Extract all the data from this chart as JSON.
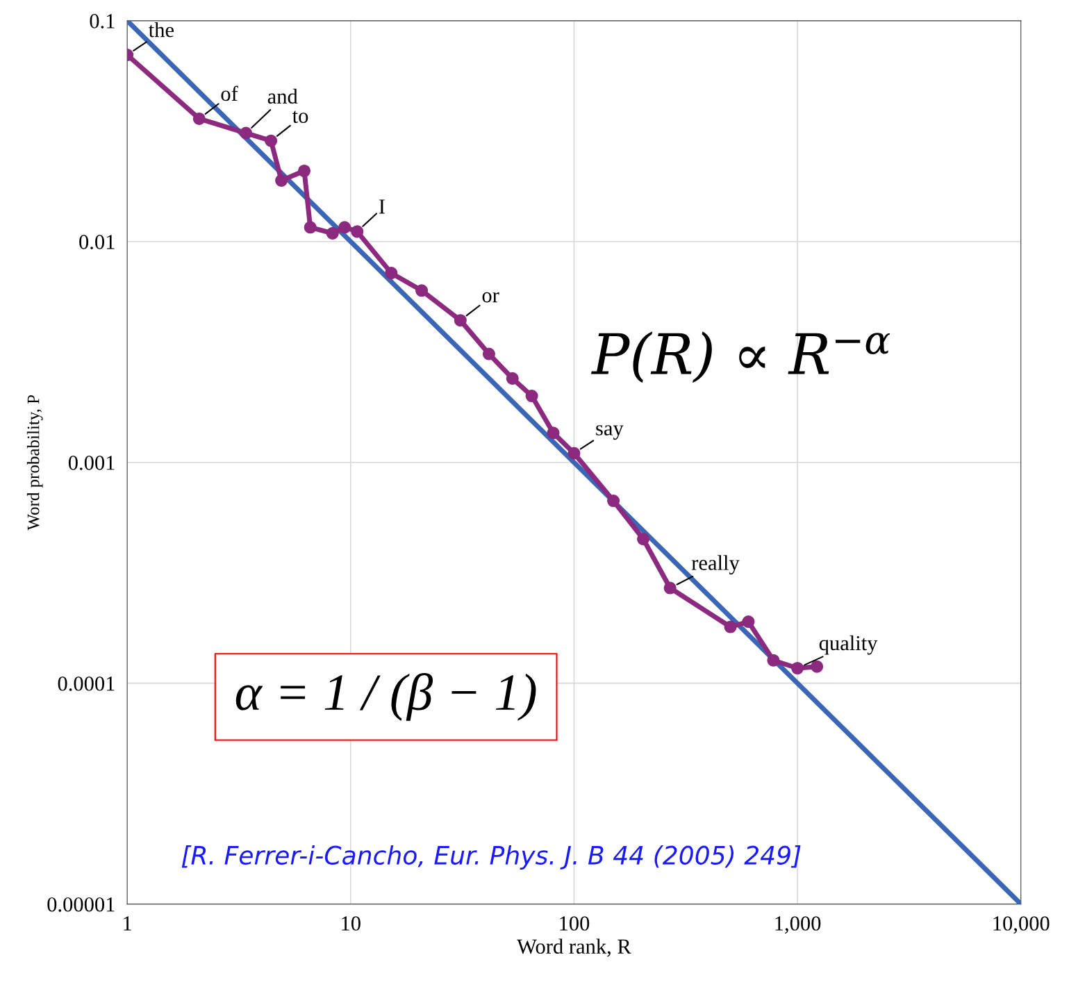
{
  "chart_data": {
    "type": "line",
    "xlabel": "Word rank, R",
    "ylabel": "Word probability, P",
    "log": "xy",
    "xlim": [
      1,
      10000
    ],
    "ylim": [
      1e-05,
      0.1
    ],
    "xticks": [
      1,
      10,
      100,
      {
        "value": 1000,
        "label": "1,000"
      },
      {
        "value": 10000,
        "label": "10,000"
      }
    ],
    "yticks": [
      {
        "value": 1e-05,
        "label": "0.00001"
      },
      {
        "value": 0.0001,
        "label": "0.0001"
      },
      {
        "value": 0.001,
        "label": "0.001"
      },
      0.01,
      0.1
    ],
    "grid": true,
    "series": [
      {
        "color": "#3a66b5",
        "marker": "none",
        "x": [
          1,
          10000
        ],
        "values": [
          0.1,
          1e-05
        ]
      },
      {
        "color": "#8b2a7e",
        "marker": "circle",
        "x": [
          1,
          2.1,
          3.4,
          4.4,
          4.9,
          6.2,
          6.6,
          8.3,
          9.4,
          10.7,
          15.2,
          20.8,
          31,
          41.6,
          53,
          64.7,
          80.7,
          100,
          150,
          204,
          269,
          501,
          603,
          780,
          1000,
          1222
        ],
        "values": [
          0.07,
          0.036,
          0.031,
          0.0286,
          0.0189,
          0.0209,
          0.0116,
          0.0109,
          0.0116,
          0.0111,
          0.0072,
          0.006,
          0.0044,
          0.0031,
          0.0024,
          0.002,
          0.00136,
          0.0011,
          0.00067,
          0.00045,
          0.00027,
          0.00018,
          0.00019,
          0.000127,
          0.000117,
          0.000119
        ]
      }
    ],
    "annotations": [
      {
        "text": "the",
        "x": 1,
        "y": 0.07
      },
      {
        "text": "of",
        "x": 2.1,
        "y": 0.036
      },
      {
        "text": "and",
        "x": 3.4,
        "y": 0.031
      },
      {
        "text": "to",
        "x": 4.4,
        "y": 0.0286
      },
      {
        "text": "I",
        "x": 10.7,
        "y": 0.0111
      },
      {
        "text": "or",
        "x": 31,
        "y": 0.0044
      },
      {
        "text": "say",
        "x": 100,
        "y": 0.0011
      },
      {
        "text": "really",
        "x": 269,
        "y": 0.00027
      },
      {
        "text": "quality",
        "x": 1000,
        "y": 0.000117
      },
      "P(R) ∝ R$^{−α}$",
      "α = 1 / (β − 1)",
      "[R. Ferrer-i-Cancho, Eur. Phys. J. B 44 (2005) 249]"
    ]
  }
}
